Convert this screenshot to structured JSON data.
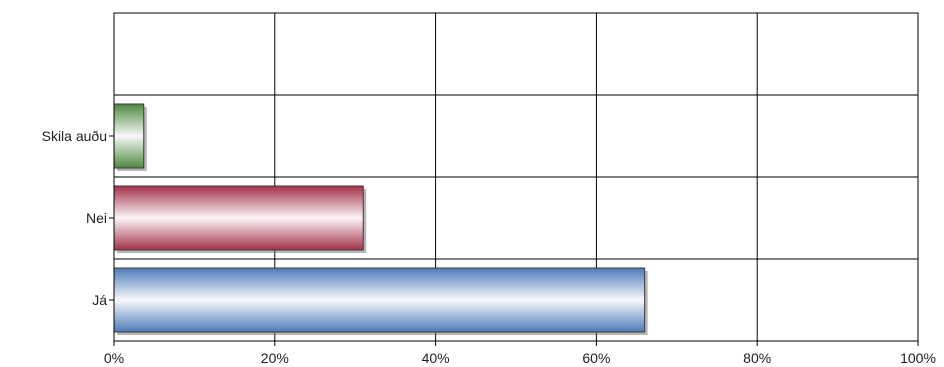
{
  "chart_data": {
    "type": "bar",
    "orientation": "horizontal",
    "categories": [
      "Skila auðu",
      "Nei",
      "Já"
    ],
    "values": [
      3.7,
      31,
      66
    ],
    "colors": [
      "#5aa04a",
      "#c03a55",
      "#5a8fd8"
    ],
    "xlim": [
      0,
      100
    ],
    "xticks": [
      0,
      20,
      40,
      60,
      80,
      100
    ],
    "xtick_labels": [
      "0%",
      "20%",
      "40%",
      "60%",
      "80%",
      "100%"
    ],
    "value_unit": "%",
    "grid": true,
    "legend": "none",
    "title": "",
    "xlabel": "",
    "ylabel": ""
  }
}
